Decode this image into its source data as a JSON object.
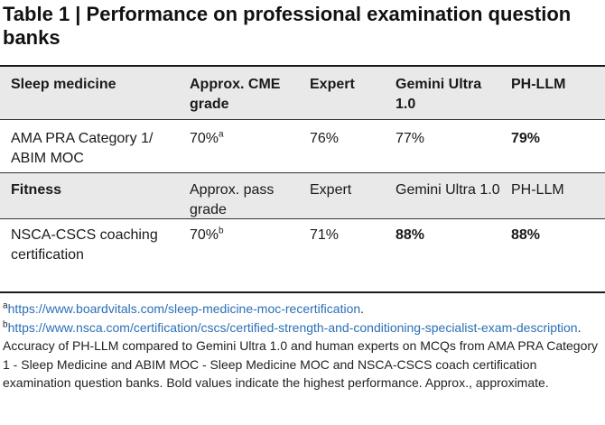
{
  "title": "Table 1 | Performance on professional examination question banks",
  "table": {
    "sleep_header": {
      "category": "Sleep medicine",
      "grade": "Approx. CME grade",
      "expert": "Expert",
      "gemini": "Gemini Ultra 1.0",
      "phllm": "PH-LLM"
    },
    "sleep_row": {
      "exam": "AMA PRA Category 1/ ABIM MOC",
      "grade": "70%",
      "grade_note": "a",
      "expert": "76%",
      "gemini": "77%",
      "phllm": "79%"
    },
    "fitness_header": {
      "category": "Fitness",
      "grade": "Approx. pass grade",
      "expert": "Expert",
      "gemini": "Gemini Ultra 1.0",
      "phllm": "PH-LLM"
    },
    "fitness_row": {
      "exam": "NSCA-CSCS coaching certification",
      "grade": "70%",
      "grade_note": "b",
      "expert": "71%",
      "gemini": "88%",
      "phllm": "88%"
    }
  },
  "footnotes": {
    "a_marker": "a",
    "a_url": "https://www.boardvitals.com/sleep-medicine-moc-recertification",
    "b_marker": "b",
    "b_url": "https://www.nsca.com/certification/cscs/certified-strength-and-conditioning-specialist-exam-description",
    "caption": "Accuracy of PH-LLM compared to Gemini Ultra 1.0 and human experts on MCQs from AMA PRA Category 1 - Sleep Medicine and ABIM MOC - Sleep Medicine MOC and NSCA-CSCS coach certification examination question banks. Bold values indicate the highest performance. Approx., approximate."
  },
  "colors": {
    "shade": "#e9e9e9",
    "link": "#2b6fb6"
  }
}
